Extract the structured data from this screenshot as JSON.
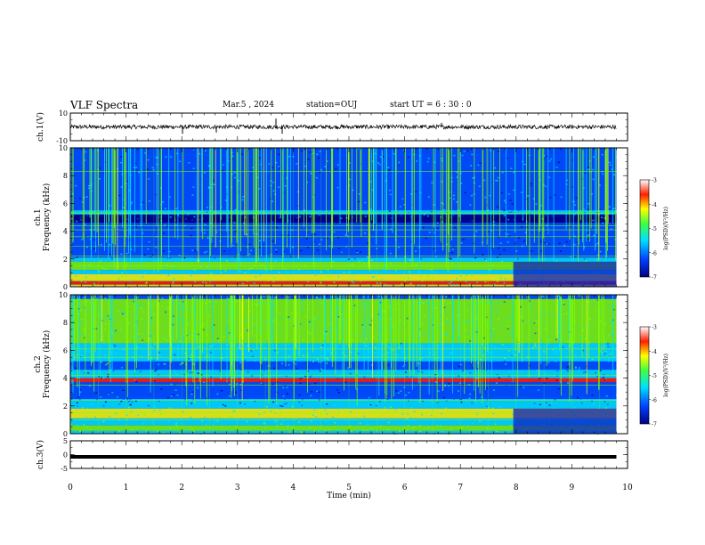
{
  "header": {
    "title": "VLF Spectra",
    "date": "Mar.5  , 2024",
    "station": "station=OUJ",
    "start": "start  UT  =   6  : 30 : 0"
  },
  "chart_data": [
    {
      "type": "line",
      "panel": "ch1-waveform",
      "ylabel": "ch.1(V)",
      "ylim": [
        -10,
        10
      ],
      "yticks": [
        "10",
        "-10"
      ],
      "description_series": "noisy waveform centered near 0 V with amplitude about ±2 V",
      "center_value": 0,
      "amplitude": 2
    },
    {
      "type": "heatmap",
      "panel": "ch1-spectrogram",
      "ylabel": "ch.1\nFrequency (kHz)",
      "ylim": [
        0,
        10
      ],
      "yticks": [
        "0",
        "2",
        "4",
        "6",
        "8",
        "10"
      ],
      "colorbar": {
        "label": "log(PSD)(V²/Hz)",
        "range": [
          -7,
          -3
        ],
        "ticks": [
          "-3",
          "-4",
          "-5",
          "-6",
          "-7"
        ]
      },
      "data_end_min": 9.8
    },
    {
      "type": "heatmap",
      "panel": "ch2-spectrogram",
      "ylabel": "ch.2\nFrequency (kHz)",
      "ylim": [
        0,
        10
      ],
      "yticks": [
        "0",
        "2",
        "4",
        "6",
        "8",
        "10"
      ],
      "colorbar": {
        "label": "log(PSD)(V²/Hz)",
        "range": [
          -7,
          -3
        ],
        "ticks": [
          "-3",
          "-4",
          "-5",
          "-6",
          "-7"
        ]
      },
      "data_end_min": 9.8
    },
    {
      "type": "line",
      "panel": "ch3-waveform",
      "ylabel": "ch.3(V)",
      "ylim": [
        -5,
        5
      ],
      "yticks": [
        "5",
        "0",
        "-5"
      ],
      "center_value": -0.8,
      "data_end_min": 9.8
    }
  ],
  "xaxis": {
    "label": "Time  (min)",
    "ticks": [
      "0",
      "1",
      "2",
      "3",
      "4",
      "5",
      "6",
      "7",
      "8",
      "9",
      "10"
    ],
    "xlim": [
      0,
      10
    ]
  },
  "colors": {
    "c_low": "#00007f",
    "c_mid1": "#0050ff",
    "c_mid2": "#00e5ff",
    "c_mid3": "#7fff00",
    "c_high1": "#ffff00",
    "c_high2": "#ff2000",
    "c_top": "#ffffff"
  }
}
